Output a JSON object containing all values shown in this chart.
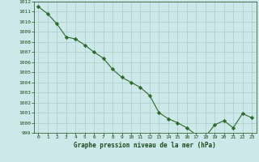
{
  "x": [
    0,
    1,
    2,
    3,
    4,
    5,
    6,
    7,
    8,
    9,
    10,
    11,
    12,
    13,
    14,
    15,
    16,
    17,
    18,
    19,
    20,
    21,
    22,
    23
  ],
  "y": [
    1011.5,
    1010.8,
    1009.8,
    1008.5,
    1008.3,
    1007.7,
    1007.0,
    1006.4,
    1005.3,
    1004.5,
    1004.0,
    1003.5,
    1002.7,
    1001.0,
    1000.4,
    1000.0,
    999.5,
    998.8,
    998.6,
    999.8,
    1000.2,
    999.5,
    1000.9,
    1000.5
  ],
  "line_color": "#2d6a2d",
  "marker": "D",
  "marker_size": 2.2,
  "bg_color": "#cce8e8",
  "grid_color": "#aacccc",
  "title": "Graphe pression niveau de la mer (hPa)",
  "title_color": "#1a4a1a",
  "tick_color": "#1a4a1a",
  "ylim": [
    999,
    1012
  ],
  "xlim": [
    -0.5,
    23.5
  ],
  "yticks": [
    999,
    1000,
    1001,
    1002,
    1003,
    1004,
    1005,
    1006,
    1007,
    1008,
    1009,
    1010,
    1011,
    1012
  ],
  "xticks": [
    0,
    1,
    2,
    3,
    4,
    5,
    6,
    7,
    8,
    9,
    10,
    11,
    12,
    13,
    14,
    15,
    16,
    17,
    18,
    19,
    20,
    21,
    22,
    23
  ]
}
